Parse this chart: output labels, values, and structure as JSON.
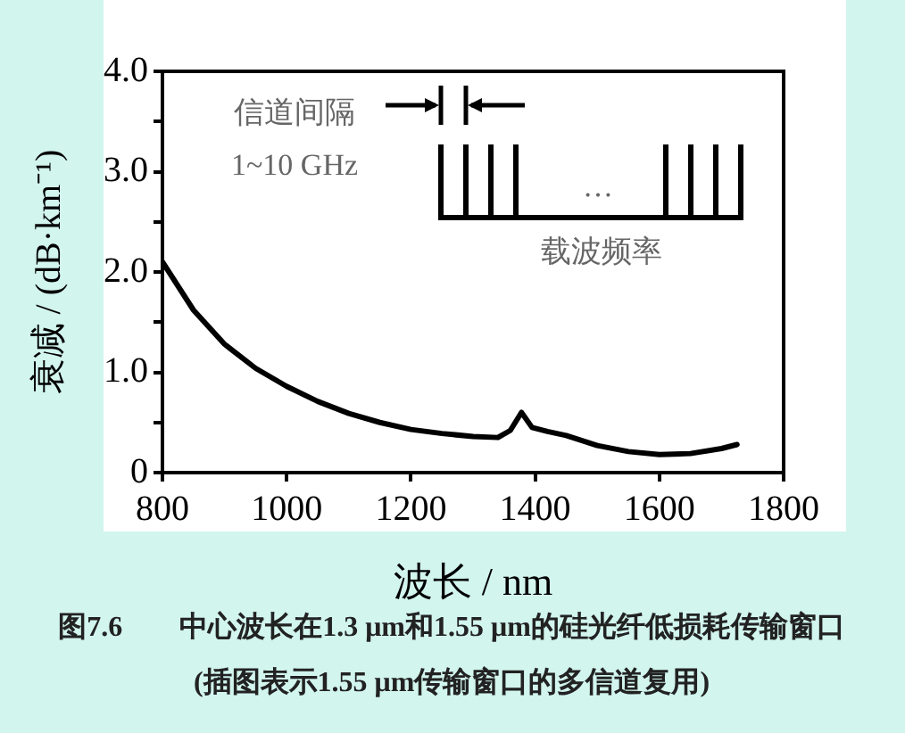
{
  "chart_data": {
    "type": "line",
    "xlabel": "波长 / nm",
    "ylabel": "衰减 / (dB·km⁻¹)",
    "x": [
      800,
      850,
      900,
      950,
      1000,
      1050,
      1100,
      1150,
      1200,
      1250,
      1300,
      1340,
      1360,
      1378,
      1395,
      1420,
      1450,
      1500,
      1550,
      1600,
      1650,
      1700,
      1725
    ],
    "series": [
      {
        "color": "#000000",
        "values": [
          2.1,
          1.62,
          1.28,
          1.04,
          0.86,
          0.71,
          0.59,
          0.5,
          0.43,
          0.39,
          0.36,
          0.35,
          0.42,
          0.6,
          0.45,
          0.41,
          0.37,
          0.27,
          0.21,
          0.18,
          0.19,
          0.24,
          0.28
        ]
      }
    ],
    "xlim": [
      800,
      1800
    ],
    "xticks": [
      800,
      1000,
      1200,
      1400,
      1600,
      1800
    ],
    "ylim": [
      0,
      4.0
    ],
    "yticks": [
      {
        "value": 0,
        "label": "0"
      },
      {
        "value": 0.5,
        "label": null
      },
      {
        "value": 1.0,
        "label": "1.0"
      },
      {
        "value": 1.5,
        "label": null
      },
      {
        "value": 2.0,
        "label": "2.0"
      },
      {
        "value": 2.5,
        "label": null
      },
      {
        "value": 3.0,
        "label": "3.0"
      },
      {
        "value": 3.5,
        "label": null
      },
      {
        "value": 4.0,
        "label": "4.0"
      }
    ],
    "grid": false,
    "legend": false,
    "marker": "none",
    "line_style": "solid",
    "annotations": [
      "信道间隔",
      "1~10 GHz",
      "…",
      "载波频率",
      "图7.6　　中心波长在1.3 μm和1.55 μm的硅光纤低损耗传输窗口",
      "(插图表示1.55 μm传输窗口的多信道复用)"
    ]
  }
}
